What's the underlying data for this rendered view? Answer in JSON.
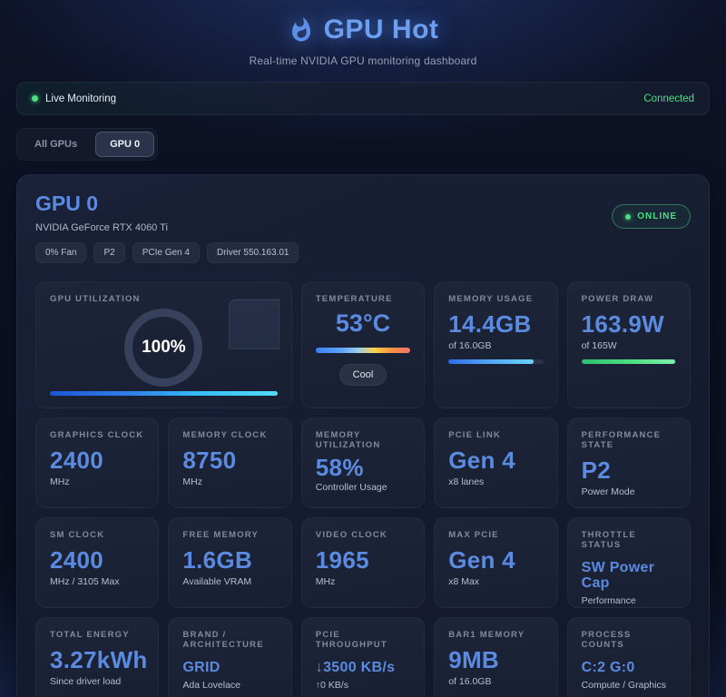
{
  "header": {
    "title": "GPU Hot",
    "subtitle": "Real-time NVIDIA GPU monitoring dashboard"
  },
  "status_bar": {
    "live_label": "Live Monitoring",
    "connection_status": "Connected"
  },
  "tabs": [
    {
      "label": "All GPUs",
      "active": false
    },
    {
      "label": "GPU 0",
      "active": true
    }
  ],
  "gpu_card": {
    "title": "GPU 0",
    "name": "NVIDIA GeForce RTX 4060 Ti",
    "badges": [
      "0% Fan",
      "P2",
      "PCIe Gen 4",
      "Driver 550.163.01"
    ],
    "online_label": "ONLINE"
  },
  "metrics": {
    "gpu_utilization": {
      "label": "GPU UTILIZATION",
      "value": "100%",
      "percent": 100
    },
    "temperature": {
      "label": "TEMPERATURE",
      "value": "53°C",
      "status": "Cool"
    },
    "memory_usage": {
      "label": "MEMORY USAGE",
      "value": "14.4GB",
      "sub": "of 16.0GB",
      "percent": 90
    },
    "power_draw": {
      "label": "POWER DRAW",
      "value": "163.9W",
      "sub": "of 165W",
      "percent": 99
    },
    "graphics_clock": {
      "label": "GRAPHICS CLOCK",
      "value": "2400",
      "sub": "MHz"
    },
    "memory_clock": {
      "label": "MEMORY CLOCK",
      "value": "8750",
      "sub": "MHz"
    },
    "memory_utilization": {
      "label": "MEMORY UTILIZATION",
      "value": "58%",
      "sub": "Controller Usage",
      "percent": 58
    },
    "pcie_link": {
      "label": "PCIE LINK",
      "value": "Gen 4",
      "sub": "x8 lanes"
    },
    "performance_state": {
      "label": "PERFORMANCE STATE",
      "value": "P2",
      "sub": "Power Mode"
    },
    "sm_clock": {
      "label": "SM CLOCK",
      "value": "2400",
      "sub": "MHz / 3105 Max"
    },
    "free_memory": {
      "label": "FREE MEMORY",
      "value": "1.6GB",
      "sub": "Available VRAM"
    },
    "video_clock": {
      "label": "VIDEO CLOCK",
      "value": "1965",
      "sub": "MHz"
    },
    "max_pcie": {
      "label": "MAX PCIE",
      "value": "Gen 4",
      "sub": "x8 Max"
    },
    "throttle_status": {
      "label": "THROTTLE STATUS",
      "value": "SW Power Cap",
      "sub": "Performance"
    },
    "total_energy": {
      "label": "TOTAL ENERGY",
      "value": "3.27kWh",
      "sub": "Since driver load"
    },
    "brand_architecture": {
      "label": "BRAND / ARCHITECTURE",
      "value": "GRID",
      "sub": "Ada Lovelace"
    },
    "pcie_throughput": {
      "label": "PCIE THROUGHPUT",
      "value": "↓3500 KB/s",
      "sub": "↑0 KB/s"
    },
    "bar1_memory": {
      "label": "BAR1 MEMORY",
      "value": "9MB",
      "sub": "of 16.0GB"
    },
    "process_counts": {
      "label": "PROCESS COUNTS",
      "value": "C:2 G:0",
      "sub": "Compute / Graphics"
    }
  },
  "colors": {
    "accent_blue": "#5b8be0",
    "status_green": "#4ade80",
    "card_bg": "#1a2138",
    "page_bg": "#0b0f21"
  }
}
